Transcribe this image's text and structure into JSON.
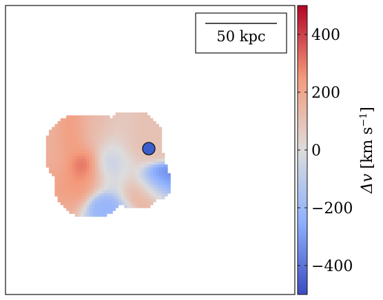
{
  "chart_data": {
    "type": "heatmap",
    "colormap": "coolwarm",
    "grid": false,
    "colorbar": {
      "label_main": "Δv",
      "label_unit": "[km s",
      "label_exp": "−1",
      "label_close": "]",
      "vmin": -500,
      "vmax": 500,
      "ticks": [
        {
          "value": 400,
          "label": "400"
        },
        {
          "value": 200,
          "label": "200"
        },
        {
          "value": 0,
          "label": "0"
        },
        {
          "value": -200,
          "label": "−200"
        },
        {
          "value": -400,
          "label": "−400"
        }
      ]
    },
    "scalebar": {
      "label": "50 kpc"
    },
    "marker": {
      "type": "circle",
      "color": "#3a5fcd"
    },
    "velocity_map": {
      "grid_size": 100,
      "blobs": [
        {
          "x": 27,
          "y": 54,
          "sx": 3.0,
          "sy": 3.5,
          "v": 470
        },
        {
          "x": 25,
          "y": 50,
          "sx": 6.0,
          "sy": 6.0,
          "v": 180
        },
        {
          "x": 28,
          "y": 59,
          "sx": 5.0,
          "sy": 3.0,
          "v": 250
        },
        {
          "x": 30,
          "y": 46,
          "sx": 6.0,
          "sy": 4.0,
          "v": 120
        },
        {
          "x": 23,
          "y": 46,
          "sx": 2.5,
          "sy": 4.0,
          "v": 300
        },
        {
          "x": 35,
          "y": 55,
          "sx": 4.0,
          "sy": 6.0,
          "v": -150
        },
        {
          "x": 41,
          "y": 57,
          "sx": 4.0,
          "sy": 3.5,
          "v": 40
        },
        {
          "x": 44,
          "y": 49,
          "sx": 5.0,
          "sy": 3.0,
          "v": 100
        },
        {
          "x": 47,
          "y": 62,
          "sx": 4.0,
          "sy": 2.5,
          "v": 170
        },
        {
          "x": 51,
          "y": 60,
          "sx": 3.5,
          "sy": 2.5,
          "v": -360
        },
        {
          "x": 34,
          "y": 68,
          "sx": 2.0,
          "sy": 2.0,
          "v": -220
        },
        {
          "x": 37,
          "y": 52,
          "sx": 3.0,
          "sy": 3.0,
          "v": -60
        }
      ],
      "cells": [
        [
          22,
          46,
          5
        ],
        [
          23,
          44,
          5
        ],
        [
          22,
          49,
          8
        ],
        [
          24,
          51,
          5
        ],
        [
          26,
          50,
          12
        ],
        [
          26,
          53,
          8
        ],
        [
          31,
          54,
          11
        ],
        [
          29,
          60,
          12
        ],
        [
          24,
          59,
          5
        ],
        [
          30,
          48,
          10
        ],
        [
          33,
          51,
          10
        ],
        [
          42,
          56,
          12
        ],
        [
          40,
          52,
          10
        ],
        [
          45,
          61,
          8
        ],
        [
          43,
          47,
          10
        ],
        [
          50,
          58,
          5
        ],
        [
          51,
          61,
          5
        ],
        [
          32,
          68,
          4
        ],
        [
          35,
          66,
          3
        ],
        [
          31,
          57,
          5
        ]
      ]
    }
  }
}
